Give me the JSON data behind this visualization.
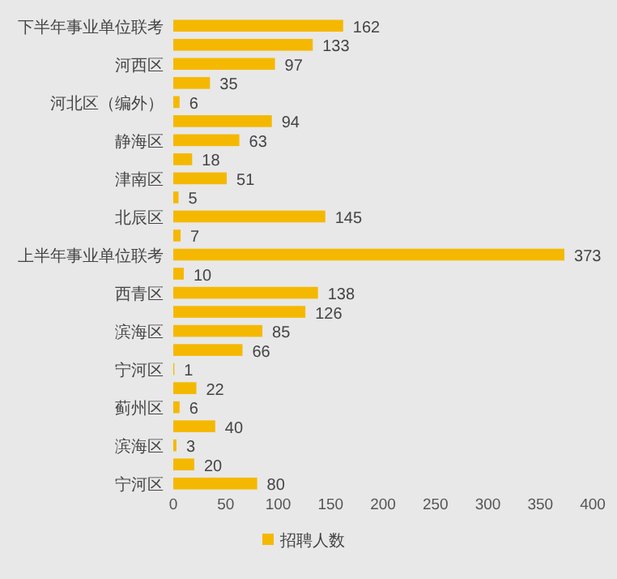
{
  "chart_data": {
    "type": "bar",
    "orientation": "horizontal",
    "categories": [
      "下半年事业单位联考",
      null,
      "河西区",
      null,
      "河北区（编外）",
      null,
      "静海区",
      null,
      "津南区",
      null,
      "北辰区",
      null,
      "上半年事业单位联考",
      null,
      "西青区",
      null,
      "滨海区",
      null,
      "宁河区",
      null,
      "蓟州区",
      null,
      "滨海区",
      null,
      "宁河区"
    ],
    "series": [
      {
        "name": "招聘人数",
        "color": "#f5b800",
        "values": [
          162,
          133,
          97,
          35,
          6,
          94,
          63,
          18,
          51,
          5,
          145,
          7,
          373,
          10,
          138,
          126,
          85,
          66,
          1,
          22,
          6,
          40,
          3,
          20,
          80
        ]
      }
    ],
    "xlim": [
      0,
      400
    ],
    "xticks": [
      0,
      50,
      100,
      150,
      200,
      250,
      300,
      350,
      400
    ],
    "data_labels": true,
    "legend": "bottom",
    "grid": false
  }
}
